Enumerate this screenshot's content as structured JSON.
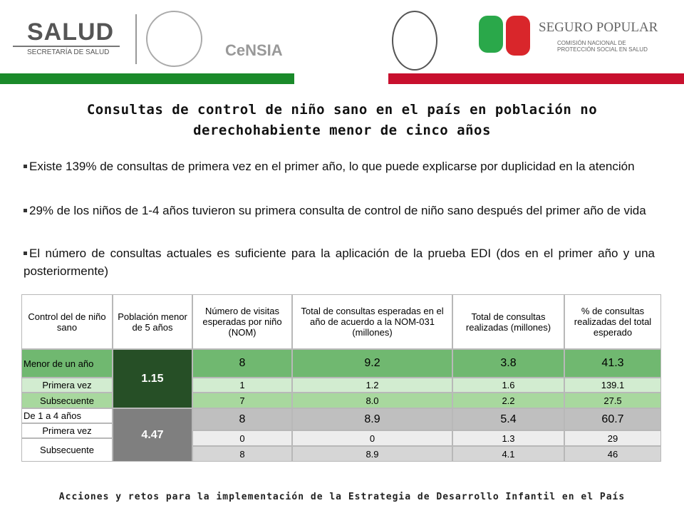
{
  "header": {
    "logos": {
      "salud": "SALUD",
      "salud_sub": "SECRETARÍA DE SALUD",
      "censia": "CeNSIA",
      "seguro_popular": "SEGURO POPULAR",
      "seguro_popular_sub": "COMISIÓN NACIONAL DE PROTECCIÓN SOCIAL EN SALUD"
    }
  },
  "title": "Consultas de control de niño sano en el país en población no derechohabiente menor de cinco años",
  "bullets": [
    "Existe 139% de consultas de primera vez en el primer año, lo que puede explicarse por duplicidad en la atención",
    "29% de los niños de 1-4 años tuvieron su primera consulta de control de niño sano después del primer año de vida",
    "El número de consultas actuales es suficiente para la aplicación de la prueba EDI (dos en el primer año y una posteriormente)"
  ],
  "table": {
    "columns": [
      "Control del de niño sano",
      "Población menor de 5 años",
      "Número de visitas esperadas por niño (NOM)",
      "Total de consultas esperadas en el año de acuerdo a la NOM-031 (millones)",
      "Total de consultas realizadas (millones)",
      "% de consultas realizadas del total esperado"
    ],
    "row_labels": [
      "Menor de un año",
      "Primera vez",
      "Subsecuente",
      "De 1 a 4 años",
      "Primera vez",
      "Subsecuente"
    ],
    "population": [
      "1.15",
      "4.47"
    ],
    "rows": [
      [
        "8",
        "9.2",
        "3.8",
        "41.3"
      ],
      [
        "1",
        "1.2",
        "1.6",
        "139.1"
      ],
      [
        "7",
        "8.0",
        "2.2",
        "27.5"
      ],
      [
        "8",
        "8.9",
        "5.4",
        "60.7"
      ],
      [
        "0",
        "0",
        "1.3",
        "29"
      ],
      [
        "8",
        "8.9",
        "4.1",
        "46"
      ]
    ]
  },
  "footer": "Acciones y retos para la implementación de la Estrategia de Desarrollo Infantil en el País"
}
